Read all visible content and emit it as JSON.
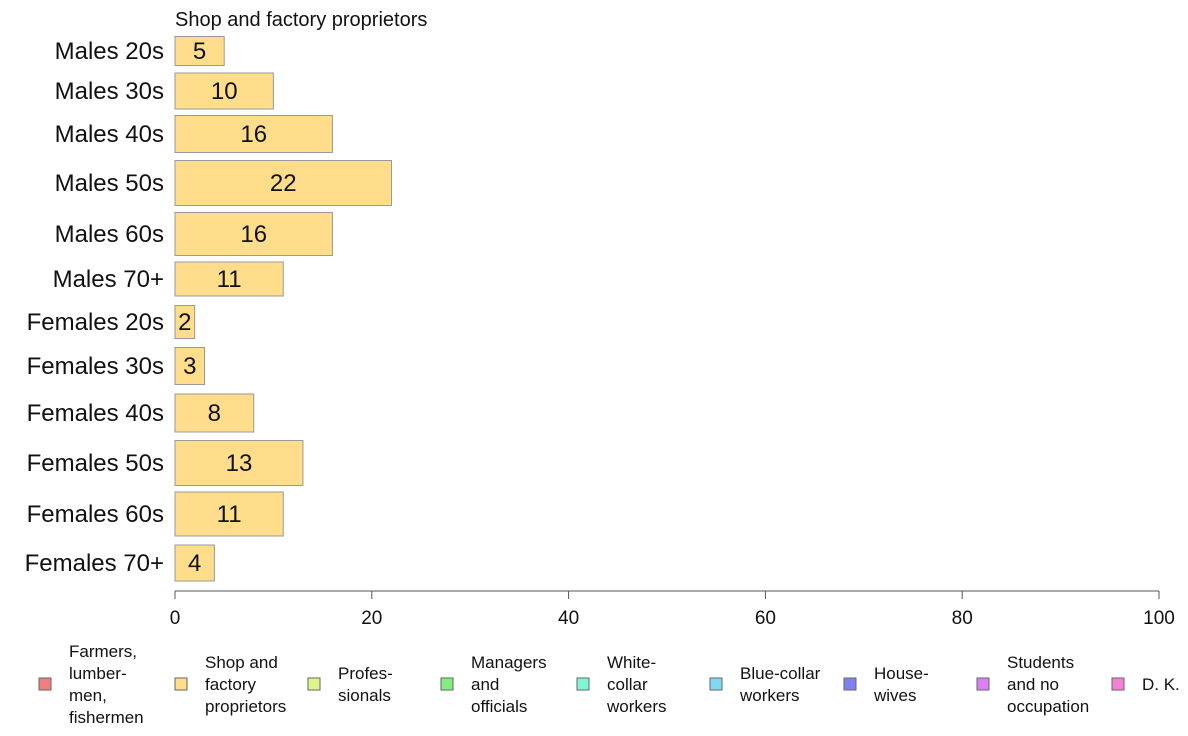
{
  "chart_data": {
    "type": "bar",
    "orientation": "horizontal",
    "subtitle": "Shop and factory proprietors",
    "categories": [
      "Males 20s",
      "Males 30s",
      "Males 40s",
      "Males 50s",
      "Males 60s",
      "Males 70+",
      "Females 20s",
      "Females 30s",
      "Females 40s",
      "Females 50s",
      "Females 60s",
      "Females 70+"
    ],
    "values": [
      5,
      10,
      16,
      22,
      16,
      11,
      2,
      3,
      8,
      13,
      11,
      4
    ],
    "value_labels": [
      "5",
      "10",
      "16",
      "22",
      "16",
      "11",
      "2",
      "3",
      "8",
      "13",
      "11",
      "4"
    ],
    "xlim": [
      0,
      100
    ],
    "xticks": [
      0,
      20,
      40,
      60,
      80,
      100
    ],
    "xtick_labels": [
      "0",
      "20",
      "40",
      "60",
      "80",
      "100"
    ],
    "grid": false,
    "bar_color": "#FFDD8A",
    "bar_edge_color": "#999999",
    "legend": {
      "placement": "bottom",
      "entries": [
        {
          "lines": [
            "Farmers,",
            "lumber-",
            "men,",
            "fishermen"
          ],
          "color": "#F08080"
        },
        {
          "lines": [
            "Shop and",
            "factory",
            "proprietors"
          ],
          "color": "#FFDD8A"
        },
        {
          "lines": [
            "Profes-",
            "sionals"
          ],
          "color": "#DDF58A"
        },
        {
          "lines": [
            "Managers",
            "and",
            "officials"
          ],
          "color": "#80EE80"
        },
        {
          "lines": [
            "White-",
            "collar",
            "workers"
          ],
          "color": "#80F5D5"
        },
        {
          "lines": [
            "Blue-collar",
            "workers"
          ],
          "color": "#80D8F5"
        },
        {
          "lines": [
            "House-",
            "wives"
          ],
          "color": "#8080EE"
        },
        {
          "lines": [
            "Students",
            "and no",
            "occupation"
          ],
          "color": "#D880F5"
        },
        {
          "lines": [
            "D. K."
          ],
          "color": "#F580D5"
        }
      ]
    }
  }
}
